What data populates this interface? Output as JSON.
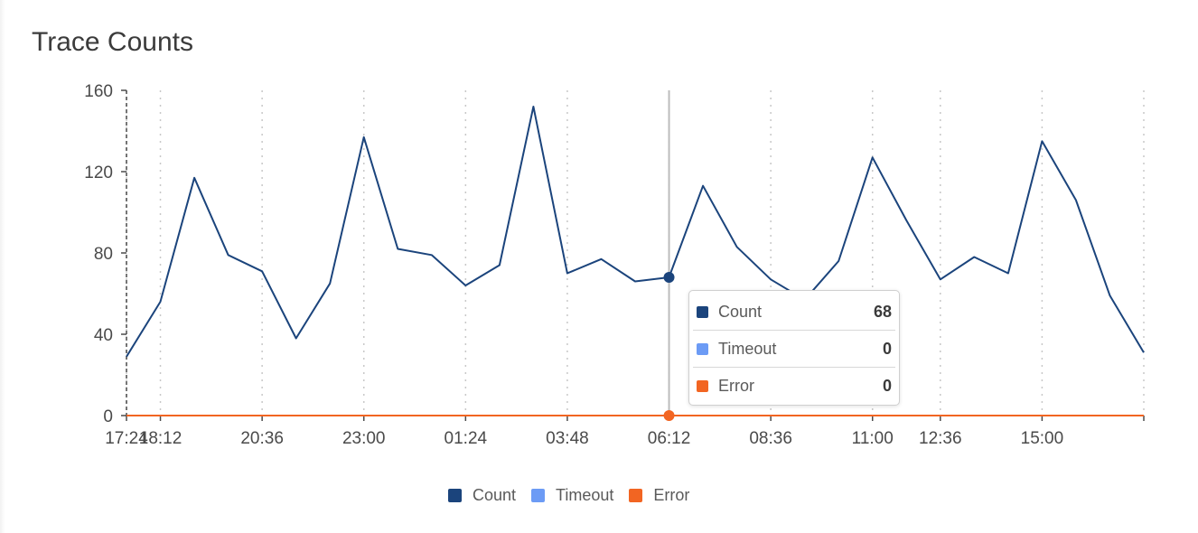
{
  "panel": {
    "title": "Trace Counts"
  },
  "colors": {
    "count": "#1b447c",
    "timeout": "#6c9bf5",
    "error": "#f26522",
    "grid": "#c8c8c8",
    "axis": "#4a4a4a",
    "crosshair": "#bcbcbc"
  },
  "tooltip": {
    "rows": [
      {
        "label": "Count",
        "value": "68"
      },
      {
        "label": "Timeout",
        "value": "0"
      },
      {
        "label": "Error",
        "value": "0"
      }
    ]
  },
  "legend": {
    "items": [
      {
        "label": "Count"
      },
      {
        "label": "Timeout"
      },
      {
        "label": "Error"
      }
    ]
  },
  "chart_data": {
    "type": "line",
    "title": "Trace Counts",
    "xlabel": "",
    "ylabel": "",
    "ylim": [
      0,
      160
    ],
    "yticks": [
      0,
      40,
      80,
      120,
      160
    ],
    "xticks": [
      "18:12",
      "20:36",
      "23:00",
      "01:24",
      "03:48",
      "06:12",
      "08:36",
      "11:00",
      "12:36",
      "15:00",
      "17:24"
    ],
    "x": [
      "17:24",
      "18:12",
      "19:00",
      "19:48",
      "20:36",
      "21:24",
      "22:12",
      "23:00",
      "23:48",
      "00:36",
      "01:24",
      "02:12",
      "03:00",
      "03:48",
      "04:36",
      "05:24",
      "06:12",
      "07:00",
      "07:48",
      "08:36",
      "09:24",
      "10:12",
      "11:00",
      "11:48",
      "12:36",
      "13:24",
      "14:12",
      "15:00",
      "15:48",
      "16:36",
      "17:24"
    ],
    "series": [
      {
        "name": "Count",
        "values": [
          29,
          56,
          117,
          79,
          71,
          38,
          65,
          137,
          82,
          79,
          64,
          74,
          152,
          70,
          77,
          66,
          68,
          113,
          83,
          67,
          57,
          76,
          127,
          96,
          67,
          78,
          70,
          135,
          106,
          59,
          31
        ]
      },
      {
        "name": "Timeout",
        "values": [
          0,
          0,
          0,
          0,
          0,
          0,
          0,
          0,
          0,
          0,
          0,
          0,
          0,
          0,
          0,
          0,
          0,
          0,
          0,
          0,
          0,
          0,
          0,
          0,
          0,
          0,
          0,
          0,
          0,
          0,
          0
        ]
      },
      {
        "name": "Error",
        "values": [
          0,
          0,
          0,
          0,
          0,
          0,
          0,
          0,
          0,
          0,
          0,
          0,
          0,
          0,
          0,
          0,
          0,
          0,
          0,
          0,
          0,
          0,
          0,
          0,
          0,
          0,
          0,
          0,
          0,
          0,
          0
        ]
      }
    ],
    "highlight": {
      "x": "06:12",
      "series_values": {
        "Count": 68,
        "Timeout": 0,
        "Error": 0
      }
    },
    "grid": "vertical dotted",
    "legend": "bottom-center"
  }
}
